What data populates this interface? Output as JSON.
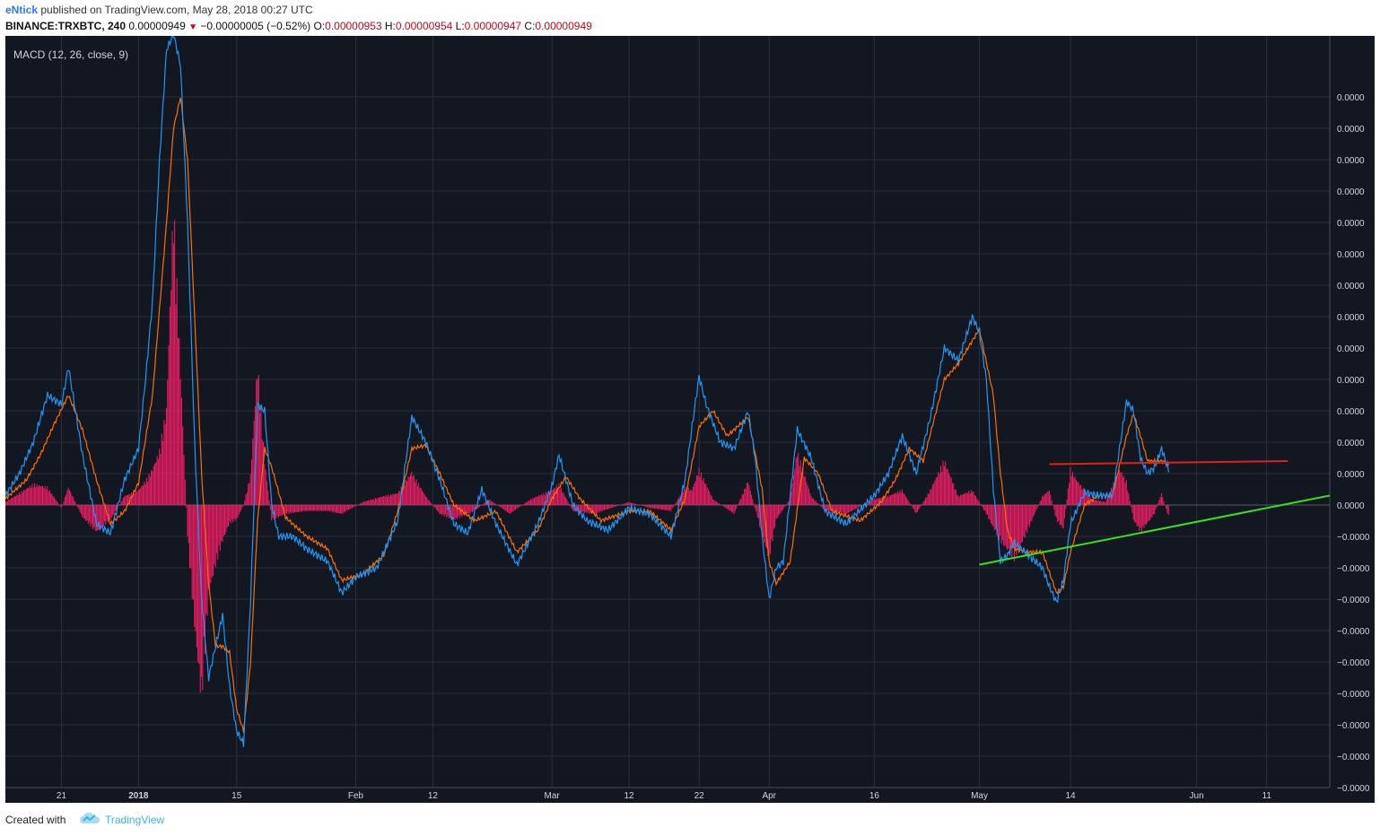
{
  "header": {
    "author": "eNtick",
    "published_text": "published on TradingView.com, May 28, 2018 00:27 UTC",
    "symbol": "BINANCE:TRXBTC, 240",
    "last_price": "0.00000949",
    "change": "−0.00000005 (−0.52%)",
    "open_label": "O:",
    "open_value": "0.00000953",
    "high_label": "H:",
    "high_value": "0.00000954",
    "low_label": "L:",
    "low_value": "0.00000947",
    "close_label": "C:",
    "close_value": "0.00000949",
    "down_icon": "triangle-down-icon"
  },
  "indicator": {
    "label": "MACD (12, 26, close, 9)"
  },
  "footer": {
    "created_with": "Created with",
    "brand": "TradingView",
    "logo_icon": "tradingview-cloud-icon"
  },
  "colors": {
    "background": "#131722",
    "grid": "#2a2e39",
    "macd": "#2196f3",
    "signal": "#ff6d00",
    "histogram": "#e91e63",
    "support_line": "#39e01c",
    "resistance_line": "#e0201c",
    "axis_text": "#d1d4dc"
  },
  "chart_data": {
    "type": "line",
    "title": "",
    "x_start": "2017-12-13",
    "x_end": "2018-06-20",
    "x_ticks": [
      {
        "label": "21",
        "date": "2017-12-21"
      },
      {
        "label": "2018",
        "date": "2018-01-01",
        "bold": true
      },
      {
        "label": "15",
        "date": "2018-01-15"
      },
      {
        "label": "Feb",
        "date": "2018-02-01"
      },
      {
        "label": "12",
        "date": "2018-02-12"
      },
      {
        "label": "Mar",
        "date": "2018-03-01"
      },
      {
        "label": "12",
        "date": "2018-03-12"
      },
      {
        "label": "22",
        "date": "2018-03-22"
      },
      {
        "label": "Apr",
        "date": "2018-04-01"
      },
      {
        "label": "16",
        "date": "2018-04-16"
      },
      {
        "label": "May",
        "date": "2018-05-01"
      },
      {
        "label": "14",
        "date": "2018-05-14"
      },
      {
        "label": "Jun",
        "date": "2018-06-01"
      },
      {
        "label": "11",
        "date": "2018-06-11"
      }
    ],
    "y_tick_labels": [
      "0.0000",
      "0.0000",
      "0.0000",
      "0.0000",
      "0.0000",
      "0.0000",
      "0.0000",
      "0.0000",
      "0.0000",
      "0.0000",
      "0.0000",
      "0.0000",
      "0.0000",
      "0.0000",
      "−0.0000",
      "−0.0000",
      "−0.0000",
      "−0.0000",
      "−0.0000",
      "−0.0000",
      "−0.0000",
      "−0.0000",
      "−0.0000",
      "−0.0000"
    ],
    "macd": [
      [
        "2017-12-13",
        0.3
      ],
      [
        "2017-12-15",
        1.0
      ],
      [
        "2017-12-17",
        2.0
      ],
      [
        "2017-12-19",
        3.5
      ],
      [
        "2017-12-21",
        3.2
      ],
      [
        "2017-12-22",
        4.4
      ],
      [
        "2017-12-24",
        1.6
      ],
      [
        "2017-12-26",
        -0.6
      ],
      [
        "2017-12-28",
        -0.9
      ],
      [
        "2017-12-30",
        0.8
      ],
      [
        "2018-01-01",
        1.8
      ],
      [
        "2018-01-02",
        4.0
      ],
      [
        "2018-01-03",
        6.5
      ],
      [
        "2018-01-04",
        11
      ],
      [
        "2018-01-05",
        14.5
      ],
      [
        "2018-01-06",
        15
      ],
      [
        "2018-01-07",
        14
      ],
      [
        "2018-01-08",
        9
      ],
      [
        "2018-01-09",
        2
      ],
      [
        "2018-01-10",
        -3
      ],
      [
        "2018-01-11",
        -5.5
      ],
      [
        "2018-01-12",
        -4.5
      ],
      [
        "2018-01-13",
        -3.5
      ],
      [
        "2018-01-14",
        -5.8
      ],
      [
        "2018-01-15",
        -7.2
      ],
      [
        "2018-01-16",
        -7.6
      ],
      [
        "2018-01-17",
        -3
      ],
      [
        "2018-01-18",
        3.2
      ],
      [
        "2018-01-19",
        3.0
      ],
      [
        "2018-01-20",
        0
      ],
      [
        "2018-01-21",
        -1.0
      ],
      [
        "2018-01-23",
        -1.0
      ],
      [
        "2018-01-25",
        -1.4
      ],
      [
        "2018-01-28",
        -1.8
      ],
      [
        "2018-01-30",
        -2.8
      ],
      [
        "2018-02-01",
        -2.3
      ],
      [
        "2018-02-04",
        -2.0
      ],
      [
        "2018-02-07",
        -0.5
      ],
      [
        "2018-02-09",
        2.8
      ],
      [
        "2018-02-11",
        2.0
      ],
      [
        "2018-02-13",
        0.8
      ],
      [
        "2018-02-15",
        -0.6
      ],
      [
        "2018-02-17",
        -0.9
      ],
      [
        "2018-02-19",
        0.5
      ],
      [
        "2018-02-21",
        -0.6
      ],
      [
        "2018-02-24",
        -1.9
      ],
      [
        "2018-02-27",
        -0.6
      ],
      [
        "2018-03-01",
        0.6
      ],
      [
        "2018-03-02",
        1.6
      ],
      [
        "2018-03-04",
        0
      ],
      [
        "2018-03-06",
        -0.5
      ],
      [
        "2018-03-09",
        -0.8
      ],
      [
        "2018-03-12",
        -0.1
      ],
      [
        "2018-03-15",
        -0.3
      ],
      [
        "2018-03-18",
        -1.0
      ],
      [
        "2018-03-20",
        0.8
      ],
      [
        "2018-03-21",
        2.5
      ],
      [
        "2018-03-22",
        4.1
      ],
      [
        "2018-03-23",
        3.2
      ],
      [
        "2018-03-25",
        2.0
      ],
      [
        "2018-03-27",
        1.8
      ],
      [
        "2018-03-29",
        3.0
      ],
      [
        "2018-03-30",
        1.5
      ],
      [
        "2018-03-31",
        -1.0
      ],
      [
        "2018-04-01",
        -3.0
      ],
      [
        "2018-04-02",
        -2.0
      ],
      [
        "2018-04-03",
        -1.8
      ],
      [
        "2018-04-05",
        2.4
      ],
      [
        "2018-04-07",
        1.5
      ],
      [
        "2018-04-09",
        -0.2
      ],
      [
        "2018-04-12",
        -0.6
      ],
      [
        "2018-04-16",
        0.3
      ],
      [
        "2018-04-18",
        1.0
      ],
      [
        "2018-04-20",
        2.2
      ],
      [
        "2018-04-22",
        1.0
      ],
      [
        "2018-04-24",
        2.8
      ],
      [
        "2018-04-26",
        5.0
      ],
      [
        "2018-04-28",
        4.6
      ],
      [
        "2018-04-30",
        6.0
      ],
      [
        "2018-05-01",
        5.5
      ],
      [
        "2018-05-02",
        4.0
      ],
      [
        "2018-05-03",
        0.5
      ],
      [
        "2018-05-04",
        -1.8
      ],
      [
        "2018-05-05",
        -1.6
      ],
      [
        "2018-05-06",
        -1.2
      ],
      [
        "2018-05-08",
        -1.6
      ],
      [
        "2018-05-10",
        -2.0
      ],
      [
        "2018-05-11",
        -2.6
      ],
      [
        "2018-05-12",
        -3.1
      ],
      [
        "2018-05-13",
        -2.4
      ],
      [
        "2018-05-14",
        -0.6
      ],
      [
        "2018-05-16",
        0.4
      ],
      [
        "2018-05-18",
        0.3
      ],
      [
        "2018-05-19",
        0.3
      ],
      [
        "2018-05-20",
        0.3
      ],
      [
        "2018-05-22",
        3.3
      ],
      [
        "2018-05-23",
        3.0
      ],
      [
        "2018-05-24",
        1.5
      ],
      [
        "2018-05-25",
        1.0
      ],
      [
        "2018-05-26",
        1.2
      ],
      [
        "2018-05-27",
        1.8
      ],
      [
        "2018-05-28",
        1.1
      ]
    ],
    "signal": [
      [
        "2017-12-13",
        0.2
      ],
      [
        "2017-12-16",
        0.8
      ],
      [
        "2017-12-18",
        1.6
      ],
      [
        "2017-12-20",
        2.6
      ],
      [
        "2017-12-22",
        3.5
      ],
      [
        "2017-12-24",
        2.4
      ],
      [
        "2017-12-26",
        0.8
      ],
      [
        "2017-12-28",
        -0.6
      ],
      [
        "2017-12-30",
        -0.2
      ],
      [
        "2018-01-01",
        0.7
      ],
      [
        "2018-01-03",
        3.5
      ],
      [
        "2018-01-05",
        9
      ],
      [
        "2018-01-06",
        12
      ],
      [
        "2018-01-07",
        13
      ],
      [
        "2018-01-08",
        11
      ],
      [
        "2018-01-09",
        6
      ],
      [
        "2018-01-10",
        1
      ],
      [
        "2018-01-11",
        -2.5
      ],
      [
        "2018-01-12",
        -4.5
      ],
      [
        "2018-01-13",
        -4.5
      ],
      [
        "2018-01-14",
        -4.7
      ],
      [
        "2018-01-15",
        -6.5
      ],
      [
        "2018-01-16",
        -7.2
      ],
      [
        "2018-01-17",
        -5
      ],
      [
        "2018-01-18",
        -0.5
      ],
      [
        "2018-01-19",
        1.8
      ],
      [
        "2018-01-20",
        1.2
      ],
      [
        "2018-01-22",
        -0.4
      ],
      [
        "2018-01-25",
        -1.0
      ],
      [
        "2018-01-28",
        -1.4
      ],
      [
        "2018-01-30",
        -2.4
      ],
      [
        "2018-02-02",
        -2.2
      ],
      [
        "2018-02-05",
        -1.6
      ],
      [
        "2018-02-07",
        -0.2
      ],
      [
        "2018-02-09",
        1.8
      ],
      [
        "2018-02-11",
        1.9
      ],
      [
        "2018-02-13",
        1.0
      ],
      [
        "2018-02-15",
        0
      ],
      [
        "2018-02-18",
        -0.5
      ],
      [
        "2018-02-21",
        -0.2
      ],
      [
        "2018-02-24",
        -1.5
      ],
      [
        "2018-02-27",
        -0.8
      ],
      [
        "2018-03-01",
        0.2
      ],
      [
        "2018-03-03",
        0.9
      ],
      [
        "2018-03-05",
        0.2
      ],
      [
        "2018-03-08",
        -0.5
      ],
      [
        "2018-03-12",
        -0.2
      ],
      [
        "2018-03-15",
        -0.2
      ],
      [
        "2018-03-18",
        -0.8
      ],
      [
        "2018-03-20",
        0.2
      ],
      [
        "2018-03-22",
        2.5
      ],
      [
        "2018-03-24",
        3.0
      ],
      [
        "2018-03-26",
        2.2
      ],
      [
        "2018-03-29",
        2.8
      ],
      [
        "2018-03-31",
        0.5
      ],
      [
        "2018-04-01",
        -1.8
      ],
      [
        "2018-04-02",
        -2.5
      ],
      [
        "2018-04-04",
        -1.8
      ],
      [
        "2018-04-06",
        1.5
      ],
      [
        "2018-04-08",
        1.0
      ],
      [
        "2018-04-10",
        -0.2
      ],
      [
        "2018-04-14",
        -0.5
      ],
      [
        "2018-04-17",
        0.1
      ],
      [
        "2018-04-19",
        0.8
      ],
      [
        "2018-04-21",
        1.8
      ],
      [
        "2018-04-23",
        1.4
      ],
      [
        "2018-04-26",
        4.0
      ],
      [
        "2018-04-28",
        4.5
      ],
      [
        "2018-05-01",
        5.6
      ],
      [
        "2018-05-03",
        3.5
      ],
      [
        "2018-05-04",
        1.0
      ],
      [
        "2018-05-05",
        -0.8
      ],
      [
        "2018-05-06",
        -1.4
      ],
      [
        "2018-05-08",
        -1.5
      ],
      [
        "2018-05-10",
        -1.5
      ],
      [
        "2018-05-12",
        -2.8
      ],
      [
        "2018-05-13",
        -2.6
      ],
      [
        "2018-05-14",
        -1.5
      ],
      [
        "2018-05-16",
        0
      ],
      [
        "2018-05-18",
        0.3
      ],
      [
        "2018-05-20",
        0.3
      ],
      [
        "2018-05-22",
        2.2
      ],
      [
        "2018-05-23",
        2.9
      ],
      [
        "2018-05-24",
        2.2
      ],
      [
        "2018-05-25",
        1.4
      ],
      [
        "2018-05-27",
        1.4
      ],
      [
        "2018-05-28",
        1.3
      ]
    ],
    "histogram_envelope": [
      [
        "2017-12-13",
        0.1
      ],
      [
        "2017-12-15",
        0.4
      ],
      [
        "2017-12-17",
        0.7
      ],
      [
        "2017-12-19",
        0.6
      ],
      [
        "2017-12-21",
        -0.1
      ],
      [
        "2017-12-22",
        0.6
      ],
      [
        "2017-12-24",
        -0.4
      ],
      [
        "2017-12-26",
        -0.9
      ],
      [
        "2017-12-28",
        -0.5
      ],
      [
        "2017-12-30",
        0.3
      ],
      [
        "2018-01-01",
        0.5
      ],
      [
        "2018-01-02",
        0.8
      ],
      [
        "2018-01-03",
        1.2
      ],
      [
        "2018-01-04",
        1.8
      ],
      [
        "2018-01-05",
        3.2
      ],
      [
        "2018-01-06",
        10
      ],
      [
        "2018-01-07",
        4.5
      ],
      [
        "2018-01-08",
        -1
      ],
      [
        "2018-01-09",
        -4
      ],
      [
        "2018-01-10",
        -6.5
      ],
      [
        "2018-01-11",
        -3
      ],
      [
        "2018-01-12",
        -2
      ],
      [
        "2018-01-13",
        -1.2
      ],
      [
        "2018-01-14",
        -0.6
      ],
      [
        "2018-01-15",
        -0.5
      ],
      [
        "2018-01-16",
        0
      ],
      [
        "2018-01-17",
        1.0
      ],
      [
        "2018-01-18",
        4.7
      ],
      [
        "2018-01-19",
        1.5
      ],
      [
        "2018-01-20",
        -0.5
      ],
      [
        "2018-01-22",
        -0.3
      ],
      [
        "2018-01-25",
        -0.2
      ],
      [
        "2018-01-28",
        -0.2
      ],
      [
        "2018-01-30",
        -0.3
      ],
      [
        "2018-02-02",
        0.1
      ],
      [
        "2018-02-05",
        0.3
      ],
      [
        "2018-02-07",
        0.4
      ],
      [
        "2018-02-09",
        1.1
      ],
      [
        "2018-02-11",
        0.3
      ],
      [
        "2018-02-13",
        -0.3
      ],
      [
        "2018-02-15",
        -0.5
      ],
      [
        "2018-02-18",
        -0.2
      ],
      [
        "2018-02-20",
        0.2
      ],
      [
        "2018-02-23",
        -0.3
      ],
      [
        "2018-02-26",
        0.2
      ],
      [
        "2018-03-01",
        0.5
      ],
      [
        "2018-03-02",
        0.7
      ],
      [
        "2018-03-04",
        -0.2
      ],
      [
        "2018-03-07",
        -0.3
      ],
      [
        "2018-03-12",
        0.1
      ],
      [
        "2018-03-15",
        -0.1
      ],
      [
        "2018-03-18",
        -0.2
      ],
      [
        "2018-03-20",
        0.6
      ],
      [
        "2018-03-21",
        0.5
      ],
      [
        "2018-03-22",
        1.2
      ],
      [
        "2018-03-24",
        0.2
      ],
      [
        "2018-03-27",
        -0.3
      ],
      [
        "2018-03-29",
        0.8
      ],
      [
        "2018-03-31",
        -1.0
      ],
      [
        "2018-04-01",
        -1.8
      ],
      [
        "2018-04-02",
        -0.5
      ],
      [
        "2018-04-04",
        0.2
      ],
      [
        "2018-04-05",
        1.8
      ],
      [
        "2018-04-07",
        0.3
      ],
      [
        "2018-04-09",
        -0.2
      ],
      [
        "2018-04-12",
        -0.3
      ],
      [
        "2018-04-16",
        0.2
      ],
      [
        "2018-04-18",
        0.3
      ],
      [
        "2018-04-20",
        0.5
      ],
      [
        "2018-04-22",
        -0.3
      ],
      [
        "2018-04-24",
        0.5
      ],
      [
        "2018-04-26",
        1.5
      ],
      [
        "2018-04-28",
        0.3
      ],
      [
        "2018-04-30",
        0.5
      ],
      [
        "2018-05-02",
        -0.3
      ],
      [
        "2018-05-04",
        -1.2
      ],
      [
        "2018-05-06",
        -1.8
      ],
      [
        "2018-05-08",
        -0.8
      ],
      [
        "2018-05-10",
        0.3
      ],
      [
        "2018-05-11",
        0.5
      ],
      [
        "2018-05-12",
        -0.5
      ],
      [
        "2018-05-13",
        -0.8
      ],
      [
        "2018-05-14",
        1.2
      ],
      [
        "2018-05-15",
        0.8
      ],
      [
        "2018-05-17",
        0.2
      ],
      [
        "2018-05-19",
        0.1
      ],
      [
        "2018-05-21",
        1.2
      ],
      [
        "2018-05-22",
        0.8
      ],
      [
        "2018-05-23",
        -0.5
      ],
      [
        "2018-05-24",
        -0.9
      ],
      [
        "2018-05-26",
        -0.3
      ],
      [
        "2018-05-27",
        0.4
      ],
      [
        "2018-05-28",
        -0.4
      ]
    ],
    "trendlines": [
      {
        "role": "resistance",
        "from": [
          "2018-05-11",
          1.3
        ],
        "to": [
          "2018-06-14",
          1.4
        ]
      },
      {
        "role": "support",
        "from": [
          "2018-05-01",
          -1.9
        ],
        "to": [
          "2018-06-20",
          0.3
        ]
      }
    ],
    "grid": true,
    "legend": "none"
  }
}
